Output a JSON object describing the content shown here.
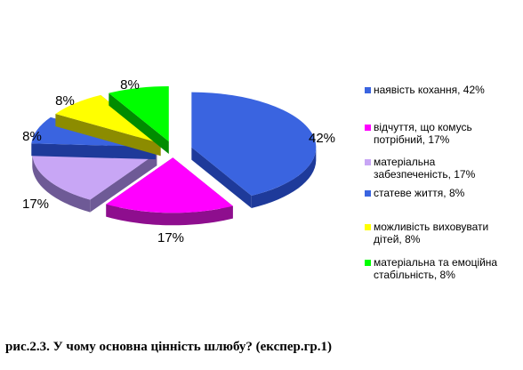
{
  "chart_data": {
    "type": "pie",
    "title": "",
    "series": [
      {
        "name": "наявість кохання, 42%",
        "label": "42%",
        "value": 42,
        "color": "#3A64E0",
        "side": "#1E3A9A"
      },
      {
        "name": "відчуття, що комусь потрібний, 17%",
        "label": "17%",
        "value": 17,
        "color": "#FF00FF",
        "side": "#8E0E8E"
      },
      {
        "name": "матеріальна забезпеченість, 17%",
        "label": "17%",
        "value": 17,
        "color": "#C8A6F5",
        "side": "#6E5A96"
      },
      {
        "name": "статеве життя, 8%",
        "label": "8%",
        "value": 8,
        "color": "#3A64E0",
        "side": "#1E3A9A"
      },
      {
        "name": "можливість виховувати дітей, 8%",
        "label": "8%",
        "value": 8,
        "color": "#FFFF00",
        "side": "#8C8C00"
      },
      {
        "name": "матеріальна та емоційна стабільність, 8%",
        "label": "8%",
        "value": 8,
        "color": "#00FF00",
        "side": "#008C00"
      }
    ],
    "legend_position": "right"
  },
  "caption": "рис.2.3. У чому основна цінність шлюбу? (експер.гр.1)"
}
